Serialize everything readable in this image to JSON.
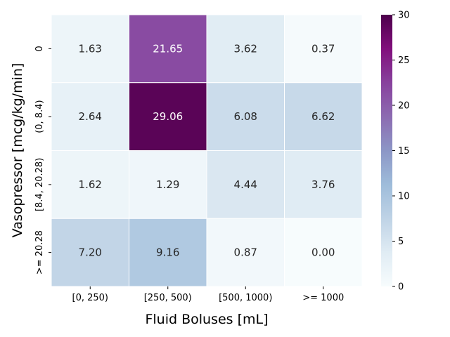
{
  "chart_data": {
    "type": "heatmap",
    "xlabel": "Fluid Boluses [mL]",
    "ylabel": "Vasopressor [mcg/kg/min]",
    "x_categories": [
      "[0, 250)",
      "[250, 500)",
      "[500, 1000)",
      ">= 1000"
    ],
    "y_categories": [
      "0",
      "(0, 8.4)",
      "[8.4, 20.28)",
      ">= 20.28"
    ],
    "values": [
      [
        1.63,
        21.65,
        3.62,
        0.37
      ],
      [
        2.64,
        29.06,
        6.08,
        6.62
      ],
      [
        1.62,
        1.29,
        4.44,
        3.76
      ],
      [
        7.2,
        9.16,
        0.87,
        0.0
      ]
    ],
    "labels": [
      [
        "1.63",
        "21.65",
        "3.62",
        "0.37"
      ],
      [
        "2.64",
        "29.06",
        "6.08",
        "6.62"
      ],
      [
        "1.62",
        "1.29",
        "4.44",
        "3.76"
      ],
      [
        "7.20",
        "9.16",
        "0.87",
        "0.00"
      ]
    ],
    "colorbar": {
      "min": 0,
      "max": 30,
      "ticks": [
        0,
        5,
        10,
        15,
        20,
        25,
        30
      ],
      "tick_labels": [
        "0",
        "5",
        "10",
        "15",
        "20",
        "25",
        "30"
      ],
      "colormap": "BuPu"
    }
  }
}
